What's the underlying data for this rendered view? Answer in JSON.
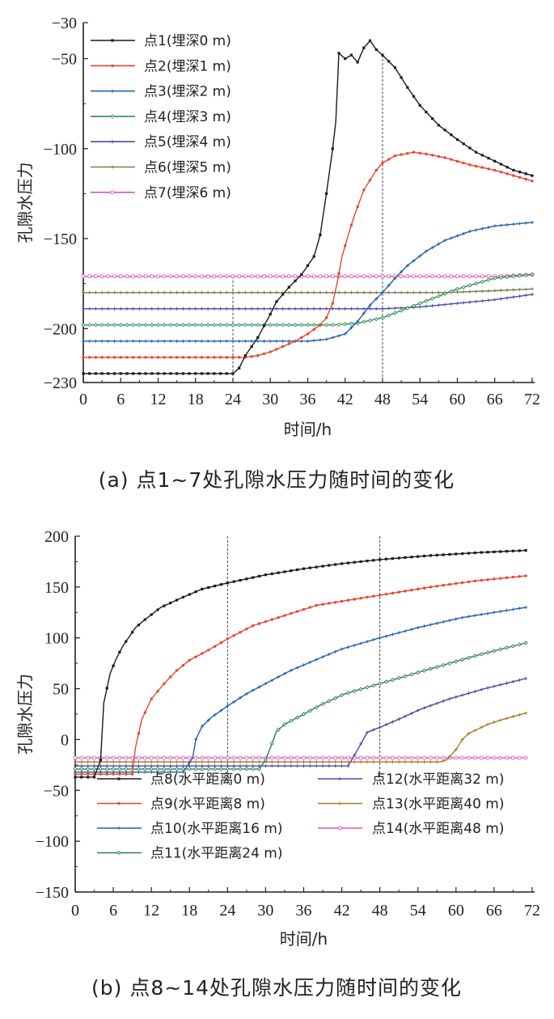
{
  "chart_data": [
    {
      "type": "line",
      "caption": "(a) 点1~7处孔隙水压力随时间的变化",
      "xlabel": "时间/h",
      "ylabel": "孔隙水压力",
      "xlim": [
        0,
        72
      ],
      "ylim": [
        -230,
        -30
      ],
      "xticks": [
        0,
        6,
        12,
        18,
        24,
        30,
        36,
        42,
        48,
        54,
        60,
        66,
        72
      ],
      "yticks": [
        -30,
        -50,
        -100,
        -150,
        -200,
        -230
      ],
      "grid": false,
      "legend_position": "top-left",
      "reference_lines_x": [
        24,
        48
      ],
      "series": [
        {
          "name": "点1(埋深0 m)",
          "color": "#1a1a1a",
          "marker": "square",
          "points": [
            [
              0,
              -225
            ],
            [
              24,
              -225
            ],
            [
              25,
              -222
            ],
            [
              26,
              -215
            ],
            [
              28,
              -205
            ],
            [
              30,
              -192
            ],
            [
              31,
              -185
            ],
            [
              33,
              -177
            ],
            [
              35,
              -170
            ],
            [
              36,
              -165
            ],
            [
              37,
              -160
            ],
            [
              38,
              -148
            ],
            [
              39,
              -125
            ],
            [
              40,
              -100
            ],
            [
              40.5,
              -85
            ],
            [
              41,
              -47
            ],
            [
              42,
              -50
            ],
            [
              43,
              -48
            ],
            [
              44,
              -52
            ],
            [
              45,
              -44
            ],
            [
              46,
              -40
            ],
            [
              47,
              -45
            ],
            [
              48,
              -48
            ],
            [
              50,
              -55
            ],
            [
              52,
              -66
            ],
            [
              54,
              -76
            ],
            [
              57,
              -87
            ],
            [
              60,
              -95
            ],
            [
              63,
              -102
            ],
            [
              66,
              -107
            ],
            [
              69,
              -112
            ],
            [
              72,
              -115
            ]
          ]
        },
        {
          "name": "点2(埋深1 m)",
          "color": "#e8462c",
          "marker": "dot",
          "points": [
            [
              0,
              -216
            ],
            [
              26,
              -216
            ],
            [
              28,
              -215
            ],
            [
              30,
              -213
            ],
            [
              32,
              -210
            ],
            [
              34,
              -207
            ],
            [
              36,
              -203
            ],
            [
              38,
              -198
            ],
            [
              39,
              -194
            ],
            [
              40,
              -186
            ],
            [
              40.7,
              -175
            ],
            [
              41.5,
              -160
            ],
            [
              42.5,
              -148
            ],
            [
              43.5,
              -137
            ],
            [
              45,
              -123
            ],
            [
              47,
              -112
            ],
            [
              48,
              -108
            ],
            [
              50,
              -104
            ],
            [
              53,
              -102
            ],
            [
              55,
              -103
            ],
            [
              58,
              -105
            ],
            [
              62,
              -109
            ],
            [
              66,
              -112
            ],
            [
              69,
              -115
            ],
            [
              72,
              -118
            ]
          ]
        },
        {
          "name": "点3(埋深2 m)",
          "color": "#1f5fae",
          "marker": "plus",
          "points": [
            [
              0,
              -207
            ],
            [
              36,
              -207
            ],
            [
              39,
              -206
            ],
            [
              42,
              -203
            ],
            [
              44,
              -196
            ],
            [
              46,
              -187
            ],
            [
              48,
              -180
            ],
            [
              50,
              -172
            ],
            [
              52,
              -165
            ],
            [
              55,
              -157
            ],
            [
              58,
              -151
            ],
            [
              62,
              -146
            ],
            [
              66,
              -143
            ],
            [
              69,
              -142
            ],
            [
              72,
              -141
            ]
          ]
        },
        {
          "name": "点4(埋深3 m)",
          "color": "#2e8b57",
          "marker": "diamond",
          "points": [
            [
              0,
              -198
            ],
            [
              40,
              -198
            ],
            [
              44,
              -197
            ],
            [
              48,
              -194
            ],
            [
              51,
              -190
            ],
            [
              54,
              -186
            ],
            [
              57,
              -182
            ],
            [
              60,
              -178
            ],
            [
              63,
              -175
            ],
            [
              66,
              -172
            ],
            [
              72,
              -170
            ]
          ]
        },
        {
          "name": "点5(埋深4 m)",
          "color": "#4a4aa8",
          "marker": "plus",
          "points": [
            [
              0,
              -189
            ],
            [
              48,
              -189
            ],
            [
              54,
              -188
            ],
            [
              60,
              -186
            ],
            [
              66,
              -184
            ],
            [
              72,
              -181
            ]
          ]
        },
        {
          "name": "点6(埋深5 m)",
          "color": "#7a7a4a",
          "marker": "plus",
          "points": [
            [
              0,
              -180
            ],
            [
              58,
              -180
            ],
            [
              66,
              -179
            ],
            [
              72,
              -178
            ]
          ]
        },
        {
          "name": "点7(埋深6 m)",
          "color": "#e055b5",
          "marker": "circle",
          "points": [
            [
              0,
              -171
            ],
            [
              66,
              -171
            ],
            [
              72,
              -170
            ]
          ]
        }
      ]
    },
    {
      "type": "line",
      "caption": "(b) 点8~14处孔隙水压力随时间的变化",
      "xlabel": "时间/h",
      "ylabel": "孔隙水压力",
      "xlim": [
        0,
        72
      ],
      "ylim": [
        -150,
        200
      ],
      "xticks": [
        0,
        6,
        12,
        18,
        24,
        30,
        36,
        42,
        48,
        54,
        60,
        66,
        72
      ],
      "yticks": [
        200,
        150,
        100,
        50,
        0,
        -50,
        -100,
        -150
      ],
      "grid": false,
      "legend_position": "bottom",
      "reference_lines_x": [
        24,
        48
      ],
      "series": [
        {
          "name": "点8(水平距离0 m)",
          "color": "#1a1a1a",
          "marker": "square",
          "points": [
            [
              0,
              -37
            ],
            [
              3,
              -37
            ],
            [
              4,
              -20
            ],
            [
              4.5,
              36
            ],
            [
              5.5,
              65
            ],
            [
              6.5,
              80
            ],
            [
              7.5,
              92
            ],
            [
              8.5,
              101
            ],
            [
              9.5,
              110
            ],
            [
              11,
              118
            ],
            [
              13.5,
              130
            ],
            [
              17,
              140
            ],
            [
              20,
              148
            ],
            [
              24,
              154
            ],
            [
              30,
              162
            ],
            [
              36,
              168
            ],
            [
              42,
              173
            ],
            [
              48,
              177
            ],
            [
              56,
              181
            ],
            [
              64,
              184
            ],
            [
              71,
              186
            ]
          ]
        },
        {
          "name": "点9(水平距离8 m)",
          "color": "#e8462c",
          "marker": "dot",
          "points": [
            [
              0,
              -34
            ],
            [
              9,
              -34
            ],
            [
              9.5,
              -8
            ],
            [
              10.5,
              20
            ],
            [
              12,
              40
            ],
            [
              14,
              55
            ],
            [
              16,
              68
            ],
            [
              18,
              78
            ],
            [
              21,
              88
            ],
            [
              24,
              99
            ],
            [
              28,
              112
            ],
            [
              33,
              122
            ],
            [
              38,
              132
            ],
            [
              48,
              142
            ],
            [
              56,
              150
            ],
            [
              63,
              156
            ],
            [
              71,
              161
            ]
          ]
        },
        {
          "name": "点10(水平距离16 m)",
          "color": "#1f5fae",
          "marker": "plus",
          "points": [
            [
              0,
              -32
            ],
            [
              17,
              -32
            ],
            [
              18.5,
              -18
            ],
            [
              19,
              0
            ],
            [
              20,
              13
            ],
            [
              21.5,
              22
            ],
            [
              24,
              33
            ],
            [
              27,
              45
            ],
            [
              30,
              55
            ],
            [
              34,
              68
            ],
            [
              38.5,
              80
            ],
            [
              42,
              89
            ],
            [
              48,
              100
            ],
            [
              54,
              110
            ],
            [
              61,
              120
            ],
            [
              71,
              130
            ]
          ]
        },
        {
          "name": "点11(水平距离24 m)",
          "color": "#2e7d4f",
          "marker": "diamond",
          "points": [
            [
              0,
              -29
            ],
            [
              29,
              -29
            ],
            [
              30,
              -20
            ],
            [
              31,
              -4
            ],
            [
              31.7,
              8
            ],
            [
              33,
              15
            ],
            [
              36,
              25
            ],
            [
              39,
              35
            ],
            [
              42.5,
              45
            ],
            [
              48,
              55
            ],
            [
              53.5,
              65
            ],
            [
              59,
              75
            ],
            [
              64,
              84
            ],
            [
              71,
              95
            ]
          ]
        },
        {
          "name": "点12(水平距离32 m)",
          "color": "#4a4aa8",
          "marker": "plus",
          "points": [
            [
              0,
              -26
            ],
            [
              43,
              -26
            ],
            [
              44.5,
              -10
            ],
            [
              46,
              7
            ],
            [
              48,
              12
            ],
            [
              51,
              20
            ],
            [
              54.5,
              30
            ],
            [
              59,
              40
            ],
            [
              64.5,
              50
            ],
            [
              71,
              60
            ]
          ]
        },
        {
          "name": "点13(水平距离40 m)",
          "color": "#a87a2a",
          "marker": "plus",
          "points": [
            [
              0,
              -22
            ],
            [
              57.5,
              -22
            ],
            [
              58.5,
              -20
            ],
            [
              60,
              -10
            ],
            [
              61,
              0
            ],
            [
              62,
              6
            ],
            [
              65,
              15
            ],
            [
              67.5,
              20
            ],
            [
              71,
              26
            ]
          ]
        },
        {
          "name": "点14(水平距离48 m)",
          "color": "#e055b5",
          "marker": "circle",
          "points": [
            [
              0,
              -18
            ],
            [
              71,
              -18
            ]
          ]
        }
      ]
    }
  ]
}
